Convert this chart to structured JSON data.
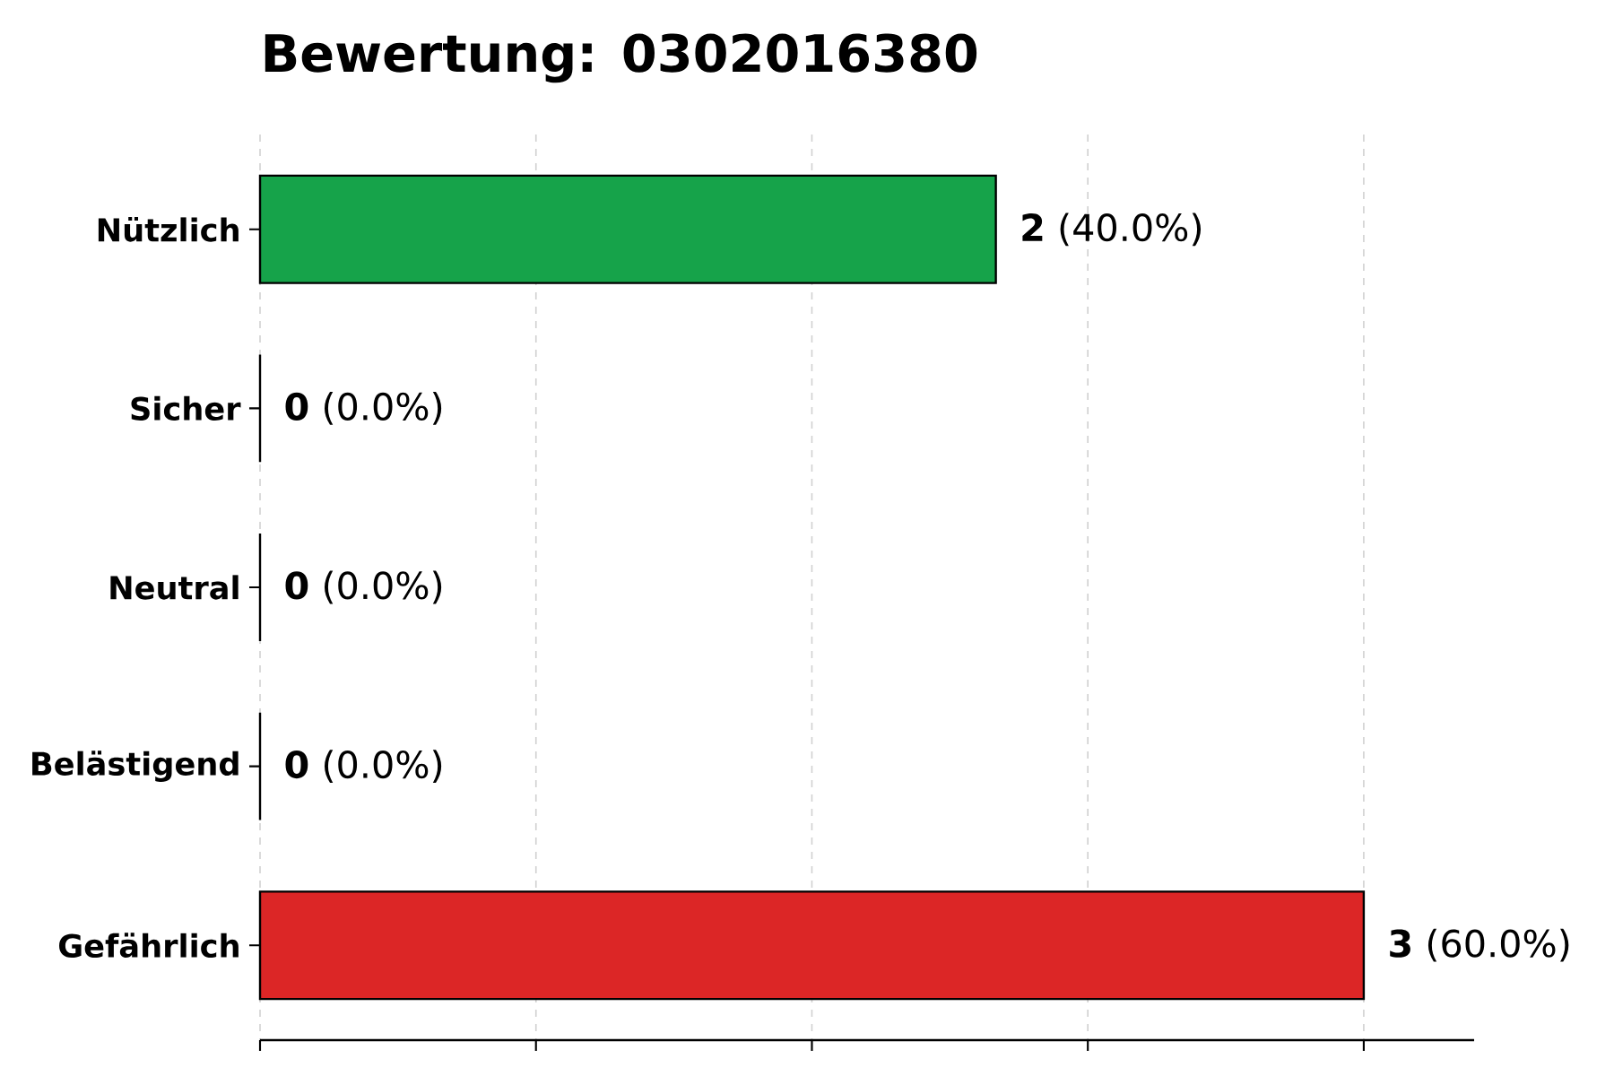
{
  "chart_data": {
    "type": "bar",
    "orientation": "horizontal",
    "title": "Bewertung: 0302016380",
    "categories": [
      "Nützlich",
      "Sicher",
      "Neutral",
      "Belästigend",
      "Gefährlich"
    ],
    "values": [
      2,
      0,
      0,
      0,
      3
    ],
    "colors": [
      "#16a34a",
      null,
      null,
      null,
      "#dc2626"
    ],
    "value_labels": [
      "**2** (40.0%)",
      "**0** (0.0%)",
      "**0** (0.0%)",
      "**0** (0.0%)",
      "**3** (60.0%)"
    ],
    "xlim": [
      0,
      3.3
    ],
    "xticks": [
      {
        "value": 0,
        "label": null
      },
      {
        "value": 0.75,
        "label": null
      },
      {
        "value": 1.5,
        "label": null
      },
      {
        "value": 2.25,
        "label": null
      },
      {
        "value": 3,
        "label": null
      }
    ],
    "grid": "x",
    "tick_labels": "y"
  }
}
